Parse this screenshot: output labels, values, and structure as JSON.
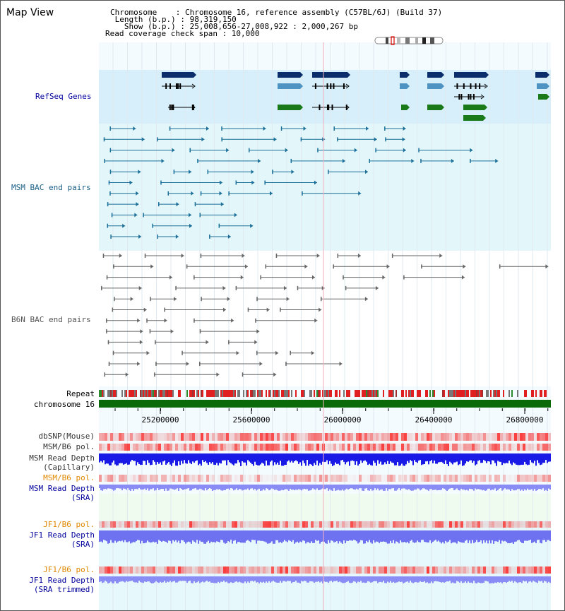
{
  "title": "Map View",
  "info": {
    "chromosome": "Chromosome    : Chromosome 16, reference assembly (C57BL/6J) (Build 37)",
    "length": " Length (b.p.) : 98,319,150",
    "show": "   Show (b.p.) : 25,008,656-27,008,922 : 2,000,267 bp",
    "coverage": "Read coverage check span : 10,000"
  },
  "tracks": {
    "refseq": "RefSeq Genes",
    "msm_bac": "MSM BAC end pairs",
    "b6n_bac": "B6N BAC end pairs",
    "repeat": "Repeat",
    "chromosome": "chromosome 16",
    "dbsnp": "dbSNP(Mouse)",
    "msm_b6_pol": "MSM/B6 pol.",
    "msm_depth_cap_1": "MSM Read Depth",
    "msm_depth_cap_2": "(Capillary)",
    "msm_b6_pol_sra": "MSM/B6 pol.",
    "msm_depth_sra_1": "MSM Read Depth",
    "msm_depth_sra_2": "(SRA)",
    "jf1_b6_pol": "JF1/B6 pol.",
    "jf1_depth_1": "JF1 Read Depth",
    "jf1_depth_2": "(SRA)",
    "jf1_b6_pol_trim": "JF1/B6 pol.",
    "jf1_depth_trim_1": "JF1 Read Depth",
    "jf1_depth_trim_2": "(SRA trimmed)"
  },
  "axis": {
    "ticks": [
      "25200000",
      "25600000",
      "26000000",
      "26400000",
      "26800000"
    ]
  },
  "colors": {
    "gene_dark": "#0b2d6b",
    "gene_mid": "#4f93c3",
    "gene_green": "#1a7a1a",
    "msm_bac": "#1b6f98",
    "b6n_bac": "#666666",
    "label_navy": "#00009c",
    "label_orange": "#e08800",
    "label_teal": "#1b5f86"
  }
}
